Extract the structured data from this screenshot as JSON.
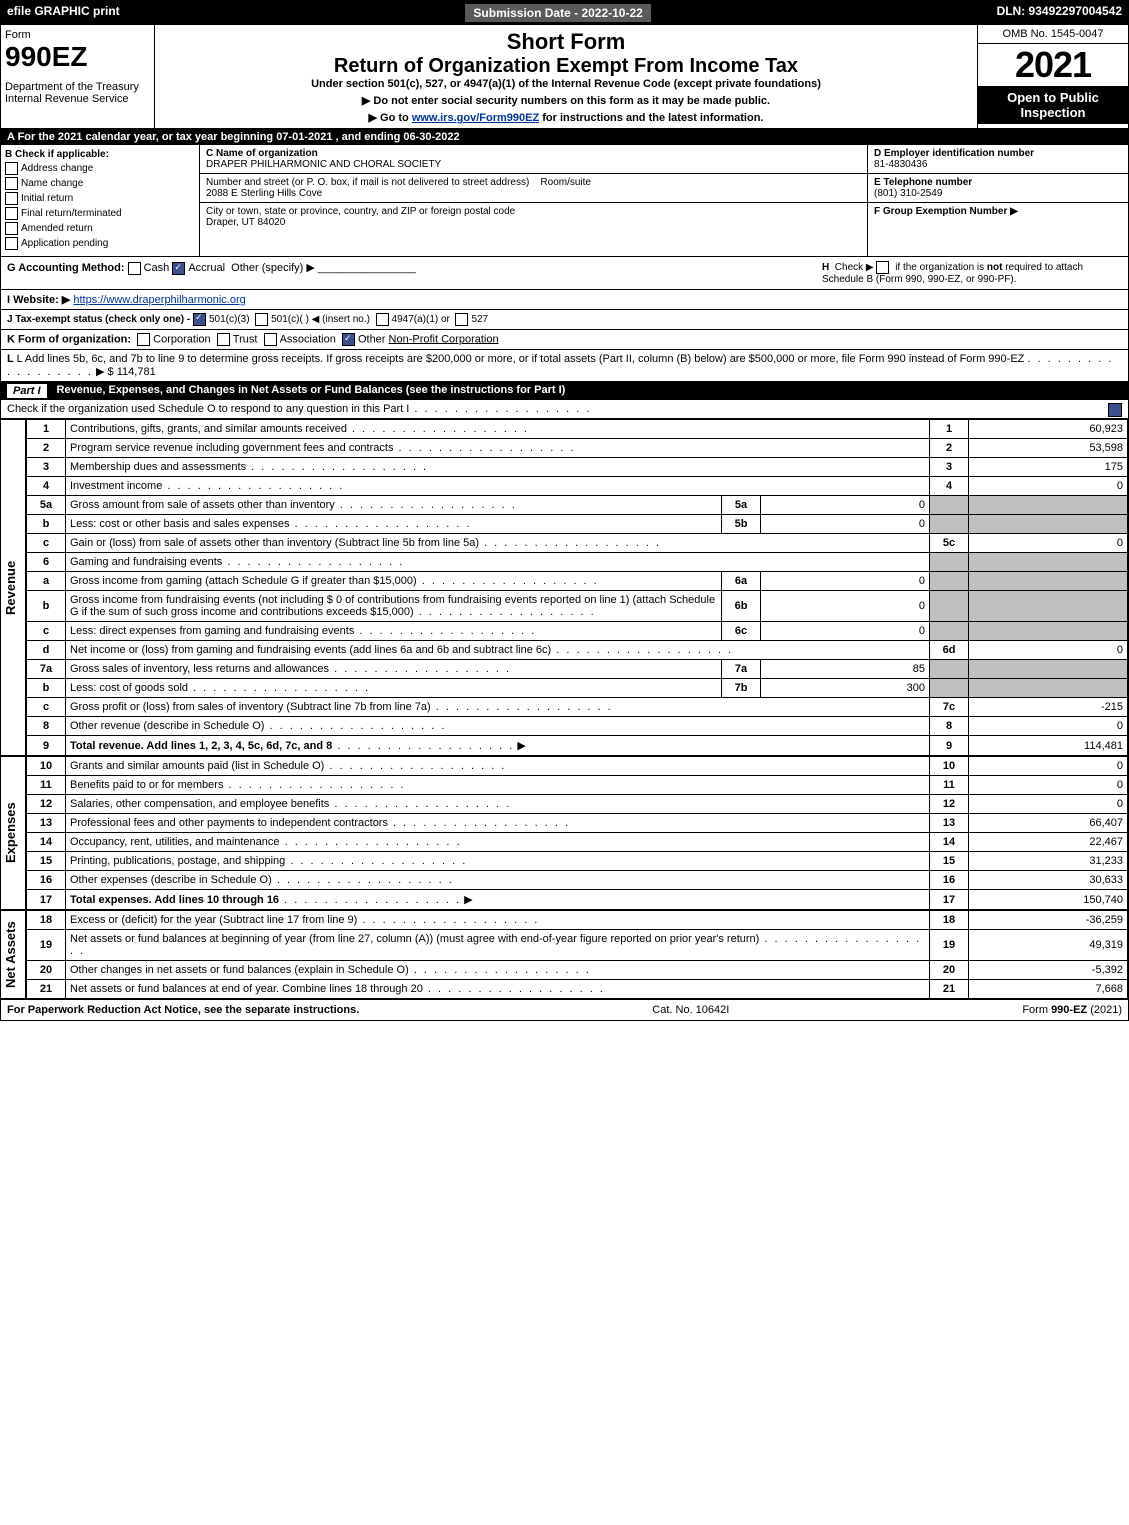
{
  "topbar": {
    "efile": "efile GRAPHIC print",
    "submission": "Submission Date - 2022-10-22",
    "dln": "DLN: 93492297004542"
  },
  "header": {
    "form_word": "Form",
    "form_num": "990EZ",
    "dept": "Department of the Treasury",
    "irs": "Internal Revenue Service",
    "short": "Short Form",
    "title": "Return of Organization Exempt From Income Tax",
    "subtitle": "Under section 501(c), 527, or 4947(a)(1) of the Internal Revenue Code (except private foundations)",
    "note1": "▶ Do not enter social security numbers on this form as it may be made public.",
    "note2_pre": "▶ Go to ",
    "note2_link": "www.irs.gov/Form990EZ",
    "note2_post": " for instructions and the latest information.",
    "omb": "OMB No. 1545-0047",
    "year": "2021",
    "open": "Open to Public Inspection"
  },
  "rowA": "A  For the 2021 calendar year, or tax year beginning 07-01-2021 , and ending 06-30-2022",
  "colB": {
    "title": "B  Check if applicable:",
    "opts": [
      "Address change",
      "Name change",
      "Initial return",
      "Final return/terminated",
      "Amended return",
      "Application pending"
    ]
  },
  "colC": {
    "name_label": "C Name of organization",
    "name": "DRAPER PHILHARMONIC AND CHORAL SOCIETY",
    "addr_label": "Number and street (or P. O. box, if mail is not delivered to street address)",
    "room_label": "Room/suite",
    "addr": "2088 E Sterling Hills Cove",
    "city_label": "City or town, state or province, country, and ZIP or foreign postal code",
    "city": "Draper, UT  84020"
  },
  "colD": {
    "ein_label": "D Employer identification number",
    "ein": "81-4830436",
    "tel_label": "E Telephone number",
    "tel": "(801) 310-2549",
    "grp_label": "F Group Exemption Number  ▶"
  },
  "rowG": {
    "label": "G Accounting Method:",
    "cash": "Cash",
    "accrual": "Accrual",
    "other": "Other (specify) ▶"
  },
  "rowH": {
    "label": "H",
    "text1": "Check ▶",
    "text2": "if the organization is ",
    "not": "not",
    "text3": " required to attach Schedule B (Form 990, 990-EZ, or 990-PF)."
  },
  "rowI": {
    "label": "I Website: ▶",
    "url": "https://www.draperphilharmonic.org"
  },
  "rowJ": {
    "text": "J Tax-exempt status (check only one) - ",
    "o501c3": "501(c)(3)",
    "o501c": "501(c)(  ) ◀ (insert no.)",
    "o4947": "4947(a)(1) or",
    "o527": "527"
  },
  "rowK": {
    "label": "K Form of organization:",
    "corp": "Corporation",
    "trust": "Trust",
    "assoc": "Association",
    "other": "Other",
    "other_val": "Non-Profit Corporation"
  },
  "rowL": {
    "text": "L Add lines 5b, 6c, and 7b to line 9 to determine gross receipts. If gross receipts are $200,000 or more, or if total assets (Part II, column (B) below) are $500,000 or more, file Form 990 instead of Form 990-EZ",
    "arrow": "▶ $",
    "val": "114,781"
  },
  "partI": {
    "label": "Part I",
    "title": "Revenue, Expenses, and Changes in Net Assets or Fund Balances (see the instructions for Part I)",
    "check_text": "Check if the organization used Schedule O to respond to any question in this Part I"
  },
  "revenue_label": "Revenue",
  "expenses_label": "Expenses",
  "netassets_label": "Net Assets",
  "lines_rev": [
    {
      "n": "1",
      "desc": "Contributions, gifts, grants, and similar amounts received",
      "r": "1",
      "v": "60,923"
    },
    {
      "n": "2",
      "desc": "Program service revenue including government fees and contracts",
      "r": "2",
      "v": "53,598"
    },
    {
      "n": "3",
      "desc": "Membership dues and assessments",
      "r": "3",
      "v": "175"
    },
    {
      "n": "4",
      "desc": "Investment income",
      "r": "4",
      "v": "0"
    },
    {
      "n": "5a",
      "desc": "Gross amount from sale of assets other than inventory",
      "il": "5a",
      "iv": "0"
    },
    {
      "n": "b",
      "desc": "Less: cost or other basis and sales expenses",
      "il": "5b",
      "iv": "0"
    },
    {
      "n": "c",
      "desc": "Gain or (loss) from sale of assets other than inventory (Subtract line 5b from line 5a)",
      "r": "5c",
      "v": "0"
    },
    {
      "n": "6",
      "desc": "Gaming and fundraising events"
    },
    {
      "n": "a",
      "desc": "Gross income from gaming (attach Schedule G if greater than $15,000)",
      "il": "6a",
      "iv": "0"
    },
    {
      "n": "b",
      "desc": "Gross income from fundraising events (not including $  0            of contributions from fundraising events reported on line 1) (attach Schedule G if the sum of such gross income and contributions exceeds $15,000)",
      "il": "6b",
      "iv": "0"
    },
    {
      "n": "c",
      "desc": "Less: direct expenses from gaming and fundraising events",
      "il": "6c",
      "iv": "0"
    },
    {
      "n": "d",
      "desc": "Net income or (loss) from gaming and fundraising events (add lines 6a and 6b and subtract line 6c)",
      "r": "6d",
      "v": "0"
    },
    {
      "n": "7a",
      "desc": "Gross sales of inventory, less returns and allowances",
      "il": "7a",
      "iv": "85"
    },
    {
      "n": "b",
      "desc": "Less: cost of goods sold",
      "il": "7b",
      "iv": "300"
    },
    {
      "n": "c",
      "desc": "Gross profit or (loss) from sales of inventory (Subtract line 7b from line 7a)",
      "r": "7c",
      "v": "-215"
    },
    {
      "n": "8",
      "desc": "Other revenue (describe in Schedule O)",
      "r": "8",
      "v": "0"
    },
    {
      "n": "9",
      "desc": "Total revenue. Add lines 1, 2, 3, 4, 5c, 6d, 7c, and 8",
      "r": "9",
      "v": "114,481",
      "bold": true,
      "arrow": true
    }
  ],
  "lines_exp": [
    {
      "n": "10",
      "desc": "Grants and similar amounts paid (list in Schedule O)",
      "r": "10",
      "v": "0"
    },
    {
      "n": "11",
      "desc": "Benefits paid to or for members",
      "r": "11",
      "v": "0"
    },
    {
      "n": "12",
      "desc": "Salaries, other compensation, and employee benefits",
      "r": "12",
      "v": "0"
    },
    {
      "n": "13",
      "desc": "Professional fees and other payments to independent contractors",
      "r": "13",
      "v": "66,407"
    },
    {
      "n": "14",
      "desc": "Occupancy, rent, utilities, and maintenance",
      "r": "14",
      "v": "22,467"
    },
    {
      "n": "15",
      "desc": "Printing, publications, postage, and shipping",
      "r": "15",
      "v": "31,233"
    },
    {
      "n": "16",
      "desc": "Other expenses (describe in Schedule O)",
      "r": "16",
      "v": "30,633"
    },
    {
      "n": "17",
      "desc": "Total expenses. Add lines 10 through 16",
      "r": "17",
      "v": "150,740",
      "bold": true,
      "arrow": true
    }
  ],
  "lines_net": [
    {
      "n": "18",
      "desc": "Excess or (deficit) for the year (Subtract line 17 from line 9)",
      "r": "18",
      "v": "-36,259"
    },
    {
      "n": "19",
      "desc": "Net assets or fund balances at beginning of year (from line 27, column (A)) (must agree with end-of-year figure reported on prior year's return)",
      "r": "19",
      "v": "49,319"
    },
    {
      "n": "20",
      "desc": "Other changes in net assets or fund balances (explain in Schedule O)",
      "r": "20",
      "v": "-5,392"
    },
    {
      "n": "21",
      "desc": "Net assets or fund balances at end of year. Combine lines 18 through 20",
      "r": "21",
      "v": "7,668"
    }
  ],
  "footer": {
    "left": "For Paperwork Reduction Act Notice, see the separate instructions.",
    "center": "Cat. No. 10642I",
    "right_pre": "Form ",
    "right_form": "990-EZ",
    "right_post": " (2021)"
  }
}
